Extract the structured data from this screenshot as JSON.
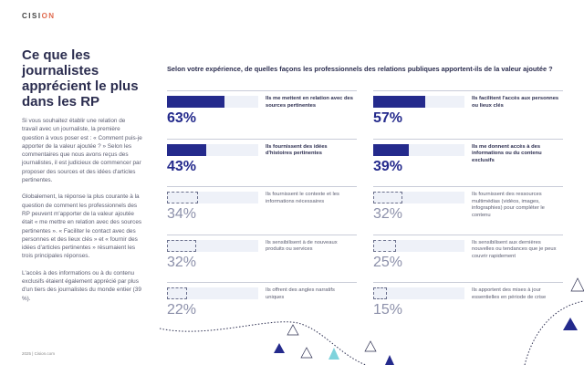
{
  "header": {
    "logo_text": "CISI",
    "logo_accent": "ON"
  },
  "left": {
    "title": "Ce que les journalistes apprécient le plus dans les RP",
    "paragraphs": [
      "Si vous souhaitez établir une relation de travail avec un journaliste, la première question à vous poser est : « Comment puis-je apporter de la valeur ajoutée ? » Selon les commentaires que nous avons reçus des journalistes, il est judicieux de commencer par proposer des sources et des idées d'articles pertinentes.",
      "Globalement, la réponse la plus courante à la question de comment les professionnels des RP peuvent m'apporter de la valeur ajoutée était « me mettre en relation avec des sources pertinentes ». « Faciliter le contact avec des personnes et des lieux clés » et « fournir des idées d'articles pertinentes » résumaient les trois principales réponses.",
      "L'accès à des informations ou à du contenu exclusifs étaient également apprécié par plus d'un tiers des journalistes du monde entier (39 %)."
    ]
  },
  "footer": {
    "text": "2025 | Cision.com"
  },
  "question": "Selon votre expérience, de quelles façons les professionnels des relations publiques apportent-ils de la valeur ajoutée ?",
  "colors": {
    "navy": "#242a8c",
    "track": "#eef1f8",
    "teal": "#7fd3dc"
  },
  "items": [
    {
      "label": "Ils me mettent en relation avec des sources pertinentes",
      "value": 63,
      "pct": "63%",
      "highlight": true
    },
    {
      "label": "Ils facilitent l'accès aux personnes ou lieux clés",
      "value": 57,
      "pct": "57%",
      "highlight": true
    },
    {
      "label": "Ils fournissent des idées d'histoires pertinentes",
      "value": 43,
      "pct": "43%",
      "highlight": true
    },
    {
      "label": "Ils me donnent accès à des informations ou du contenu exclusifs",
      "value": 39,
      "pct": "39%",
      "highlight": true
    },
    {
      "label": "Ils fournissent le contexte et les informations nécessaires",
      "value": 34,
      "pct": "34%",
      "highlight": false
    },
    {
      "label": "Ils fournissent des ressources multimédias (vidéos, images, infographies) pour compléter le contenu",
      "value": 32,
      "pct": "32%",
      "highlight": false
    },
    {
      "label": "Ils sensibilisent à de nouveaux produits ou services",
      "value": 32,
      "pct": "32%",
      "highlight": false
    },
    {
      "label": "Ils sensibilisent aux dernières nouvelles ou tendances que je peux couvrir rapidement",
      "value": 25,
      "pct": "25%",
      "highlight": false
    },
    {
      "label": "Ils offrent des angles narratifs uniques",
      "value": 22,
      "pct": "22%",
      "highlight": false
    },
    {
      "label": "Ils apportent des mises à jour essentielles en période de crise",
      "value": 15,
      "pct": "15%",
      "highlight": false
    }
  ]
}
